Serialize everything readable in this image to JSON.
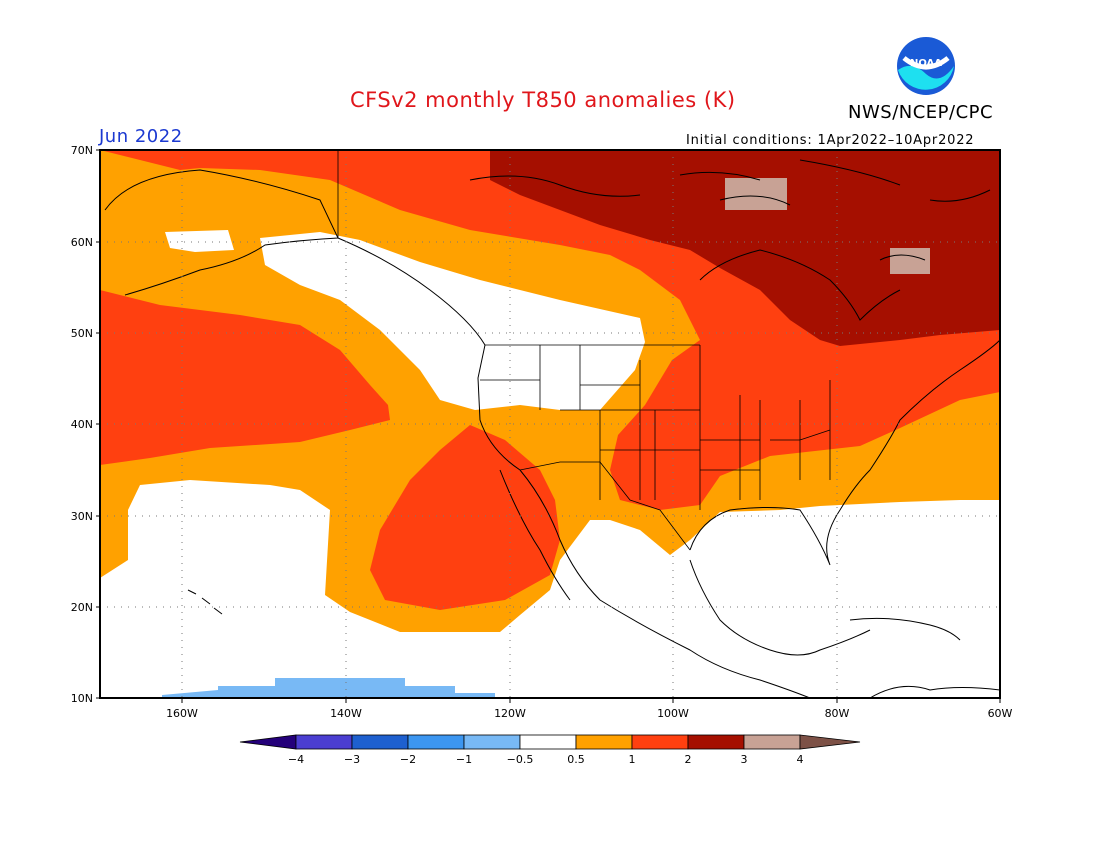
{
  "header": {
    "title": "CFSv2 monthly T850 anomalies (K)",
    "agency": "NWS/NCEP/CPC",
    "month": "Jun 2022",
    "initial_conditions": "Initial conditions: 1Apr2022–10Apr2022",
    "logo_text": "NOAA"
  },
  "map": {
    "lon_range": [
      -170,
      -60
    ],
    "lat_range": [
      10,
      70
    ],
    "lat_ticks": [
      {
        "value": 70,
        "label": "70N"
      },
      {
        "value": 60,
        "label": "60N"
      },
      {
        "value": 50,
        "label": "50N"
      },
      {
        "value": 40,
        "label": "40N"
      },
      {
        "value": 30,
        "label": "30N"
      },
      {
        "value": 20,
        "label": "20N"
      },
      {
        "value": 10,
        "label": "10N"
      }
    ],
    "lon_ticks": [
      {
        "value": -160,
        "label": "160W"
      },
      {
        "value": -140,
        "label": "140W"
      },
      {
        "value": -120,
        "label": "120W"
      },
      {
        "value": -100,
        "label": "100W"
      },
      {
        "value": -80,
        "label": "80W"
      },
      {
        "value": -60,
        "label": "60W"
      }
    ]
  },
  "colorbar": {
    "labels": [
      "−4",
      "−3",
      "−2",
      "−1",
      "−0.5",
      "0.5",
      "1",
      "2",
      "3",
      "4"
    ],
    "colors": {
      "lt_-4": "#24007a",
      "-4_-3": "#4b3ed1",
      "-3_-2": "#1e60cf",
      "-2_-1": "#3c96f0",
      "-1_-0.5": "#78b9f5",
      "-0.5_0.5": "#ffffff",
      "0.5_1": "#ffa100",
      "1_2": "#ff4010",
      "2_3": "#a50f00",
      "3_4": "#c8a295",
      "gt_4": "#7d5146"
    }
  }
}
